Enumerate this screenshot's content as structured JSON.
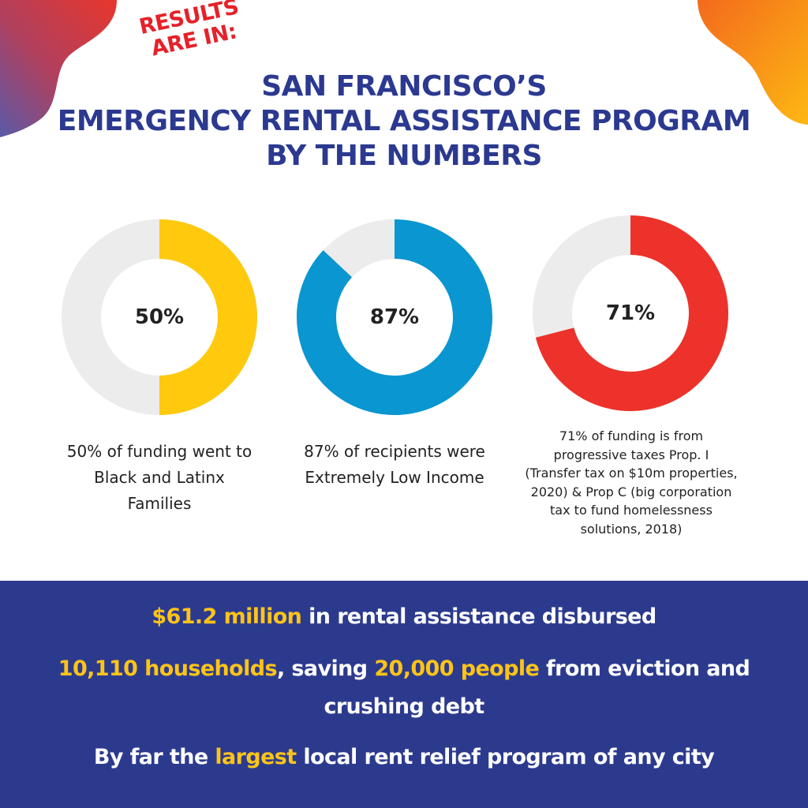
{
  "header": {
    "kicker_lines": [
      "RESULTS",
      "ARE IN:"
    ],
    "title_lines": [
      "SAN FRANCISCO’S",
      "EMERGENCY RENTAL ASSISTANCE PROGRAM",
      "BY THE NUMBERS"
    ]
  },
  "colors": {
    "title": "#2b3990",
    "kicker": "#e5212a",
    "track": "#ececec",
    "panel_bg": "#2c3a8e",
    "highlight": "#fcc419"
  },
  "chart_data": [
    {
      "type": "pie",
      "value": 50,
      "display_value": "50%",
      "color": "#ffc90e",
      "caption_lines": [
        "50% of funding went to",
        "Black and Latinx",
        "Families"
      ]
    },
    {
      "type": "pie",
      "value": 87,
      "display_value": "87%",
      "color": "#0a96d0",
      "caption_lines": [
        "87% of recipients were",
        "Extremely Low Income"
      ]
    },
    {
      "type": "pie",
      "value": 71,
      "display_value": "71%",
      "color": "#ec322a",
      "caption_lines": [
        "71% of funding is from",
        "progressive taxes Prop. I",
        "(Transfer tax on $10m properties,",
        "2020) & Prop C (big corporation",
        "tax to fund homelessness",
        "solutions, 2018)"
      ]
    }
  ],
  "facts": [
    {
      "segments": [
        {
          "text": "$61.2 million",
          "highlight": true
        },
        {
          "text": " in rental assistance disbursed",
          "highlight": false
        }
      ]
    },
    {
      "segments": [
        {
          "text": "10,110 households",
          "highlight": true
        },
        {
          "text": ", saving ",
          "highlight": false
        },
        {
          "text": "20,000 people",
          "highlight": true
        },
        {
          "text": " from eviction and",
          "highlight": false
        }
      ]
    },
    {
      "segments": [
        {
          "text": "crushing debt",
          "highlight": false
        }
      ]
    },
    {
      "segments": [
        {
          "text": "By far the ",
          "highlight": false
        },
        {
          "text": "largest",
          "highlight": true
        },
        {
          "text": " local rent relief program of any city",
          "highlight": false
        }
      ]
    }
  ]
}
